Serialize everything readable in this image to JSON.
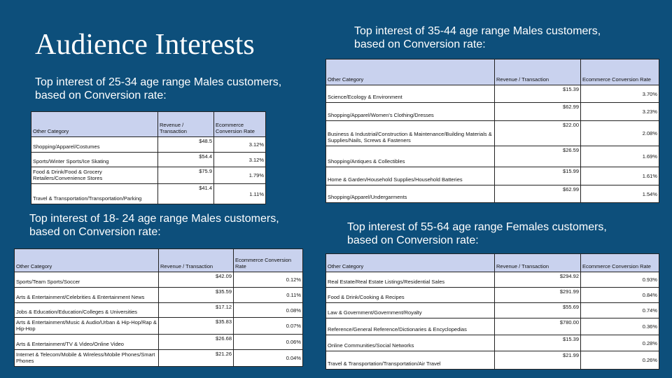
{
  "title": "Audience Interests",
  "sections": [
    {
      "heading": "Top interest of 25-34 age range Males customers, based on Conversion rate:",
      "header": [
        "Other Category",
        "Revenue / Transaction",
        "Ecommerce Conversion Rate"
      ],
      "rows": [
        [
          "Shopping/Apparel/Costumes",
          "$48.5",
          "3.12%"
        ],
        [
          "Sports/Winter Sports/Ice Skating",
          "$54.4",
          "3.12%"
        ],
        [
          "Food & Drink/Food & Grocery Retailers/Convenience Stores",
          "$75.9",
          "1.79%"
        ],
        [
          "Travel & Transportation/Transportation/Parking",
          "$41.4",
          "1.11%"
        ]
      ]
    },
    {
      "heading": "Top interest of 18- 24 age range Males customers, based on Conversion rate:",
      "header": [
        "Other Category",
        "Revenue / Transaction",
        "Ecommerce Conversion Rate"
      ],
      "rows": [
        [
          "Sports/Team Sports/Soccer",
          "$42.09",
          "0.12%"
        ],
        [
          "Arts & Entertainment/Celebrities & Entertainment News",
          "$35.59",
          "0.11%"
        ],
        [
          "Jobs & Education/Education/Colleges & Universities",
          "$17.12",
          "0.08%"
        ],
        [
          "Arts & Entertainment/Music & Audio/Urban & Hip-Hop/Rap & Hip-Hop",
          "$35.83",
          "0.07%"
        ],
        [
          "Arts & Entertainment/TV & Video/Online Video",
          "$26.68",
          "0.06%"
        ],
        [
          "Internet & Telecom/Mobile & Wireless/Mobile Phones/Smart Phones",
          "$21.26",
          "0.04%"
        ]
      ]
    },
    {
      "heading": "Top interest of 35-44 age range Males customers, based on Conversion rate:",
      "header": [
        "Other Category",
        "Revenue / Transaction",
        "Ecommerce Conversion Rate"
      ],
      "rows": [
        [
          "Science/Ecology & Environment",
          "$15.39",
          "3.70%"
        ],
        [
          "Shopping/Apparel/Women's Clothing/Dresses",
          "$62.99",
          "3.23%"
        ],
        [
          "Business & Industrial/Construction & Maintenance/Building Materials & Supplies/Nails, Screws & Fasteners",
          "$22.00",
          "2.08%"
        ],
        [
          "Shopping/Antiques & Collectibles",
          "$26.59",
          "1.69%"
        ],
        [
          "Home & Garden/Household Supplies/Household Batteries",
          "$15.99",
          "1.61%"
        ],
        [
          "Shopping/Apparel/Undergarments",
          "$62.99",
          "1.54%"
        ]
      ]
    },
    {
      "heading": "Top interest of 55-64 age range Females customers, based on Conversion rate:",
      "header": [
        "Other Category",
        "Revenue / Transaction",
        "Ecommerce Conversion Rate"
      ],
      "rows": [
        [
          "Real Estate/Real Estate Listings/Residential Sales",
          "$294.92",
          "0.93%"
        ],
        [
          "Food & Drink/Cooking & Recipes",
          "$291.99",
          "0.84%"
        ],
        [
          "Law & Government/Government/Royalty",
          "$55.69",
          "0.74%"
        ],
        [
          "Reference/General Reference/Dictionaries & Encyclopedias",
          "$780.00",
          "0.36%"
        ],
        [
          "Online Communities/Social Networks",
          "$15.39",
          "0.28%"
        ],
        [
          "Travel & Transportation/Transportation/Air Travel",
          "$21.99",
          "0.26%"
        ]
      ]
    }
  ]
}
